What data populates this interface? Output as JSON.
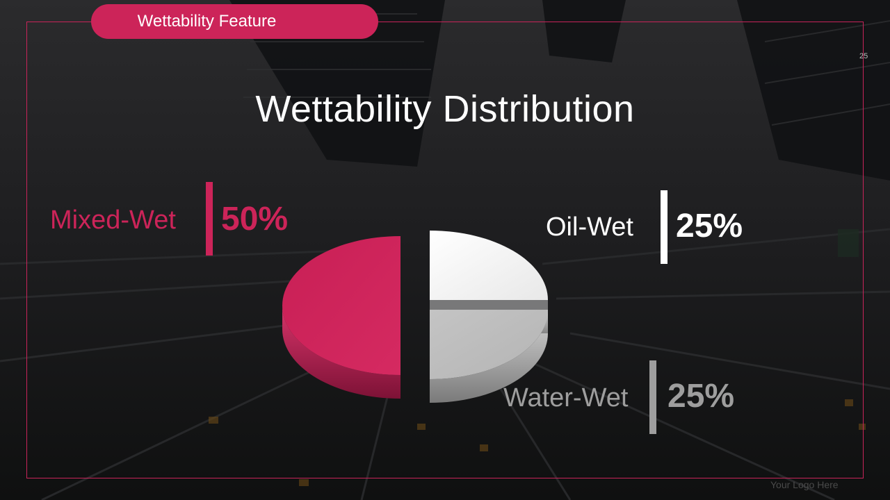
{
  "header": {
    "tag": "Wettability  Feature",
    "slide_number": "25"
  },
  "title": "Wettability Distribution",
  "footer": {
    "logo_text": "Your Logo Here"
  },
  "colors": {
    "mixed_wet": "#cc2459",
    "oil_wet": "#ffffff",
    "water_wet": "#9e9e9e",
    "frame": "#c9245a"
  },
  "chart_data": {
    "type": "pie",
    "title": "Wettability Distribution",
    "slices": [
      {
        "label": "Mixed-Wet",
        "value": 50,
        "display": "50%"
      },
      {
        "label": "Oil-Wet",
        "value": 25,
        "display": "25%"
      },
      {
        "label": "Water-Wet",
        "value": 25,
        "display": "25%"
      }
    ]
  }
}
